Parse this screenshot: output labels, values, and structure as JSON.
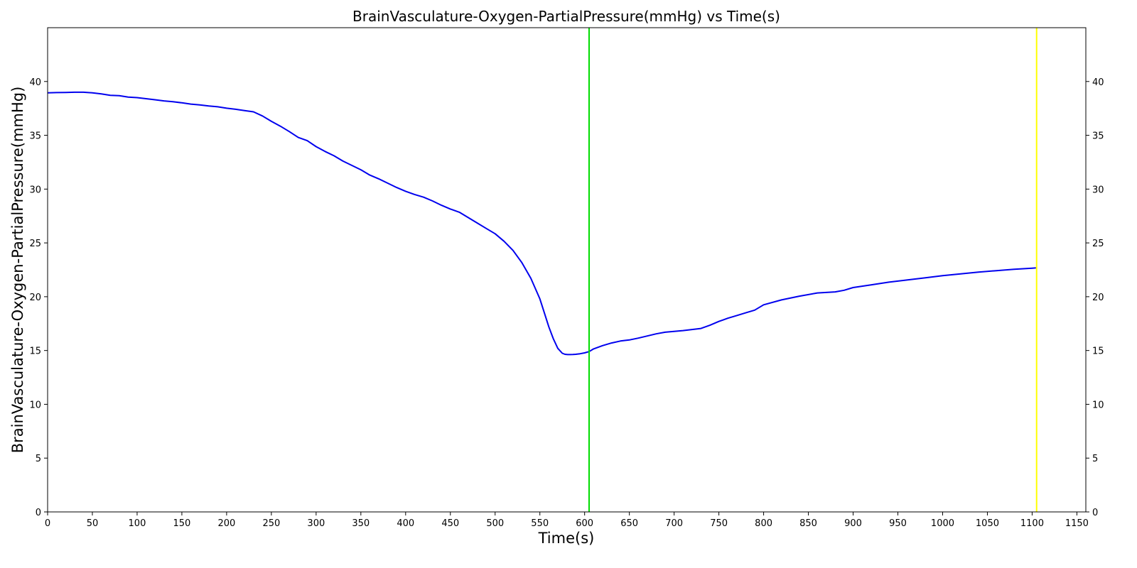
{
  "chart_data": {
    "type": "line",
    "title": "BrainVasculature-Oxygen-PartialPressure(mmHg) vs Time(s)",
    "xlabel": "Time(s)",
    "ylabel": "BrainVasculature-Oxygen-PartialPressure(mmHg)",
    "xlim": [
      0,
      1160
    ],
    "ylim": [
      0,
      45
    ],
    "x_ticks": [
      0,
      50,
      100,
      150,
      200,
      250,
      300,
      350,
      400,
      450,
      500,
      550,
      600,
      650,
      700,
      750,
      800,
      850,
      900,
      950,
      1000,
      1050,
      1100,
      1150
    ],
    "y_ticks": [
      0,
      5,
      10,
      15,
      20,
      25,
      30,
      35,
      40
    ],
    "right_axis_ticks": true,
    "grid": false,
    "legend": "none",
    "series": [
      {
        "color": "#0000ee",
        "x": [
          0,
          10,
          20,
          30,
          40,
          50,
          60,
          70,
          80,
          90,
          100,
          110,
          120,
          130,
          140,
          150,
          160,
          170,
          180,
          190,
          200,
          210,
          220,
          230,
          240,
          250,
          260,
          270,
          280,
          290,
          300,
          310,
          320,
          330,
          340,
          350,
          360,
          370,
          380,
          390,
          400,
          410,
          420,
          430,
          440,
          450,
          460,
          470,
          480,
          490,
          500,
          510,
          520,
          530,
          540,
          550,
          560,
          565,
          570,
          575,
          578,
          581,
          584,
          587,
          590,
          595,
          600,
          605,
          610,
          620,
          630,
          640,
          650,
          660,
          670,
          680,
          690,
          700,
          710,
          720,
          730,
          740,
          750,
          760,
          770,
          780,
          790,
          800,
          820,
          840,
          860,
          880,
          890,
          900,
          920,
          940,
          960,
          980,
          1000,
          1020,
          1040,
          1060,
          1080,
          1100,
          1105
        ],
        "y": [
          38.95,
          38.97,
          38.98,
          39.0,
          39.0,
          38.95,
          38.85,
          38.72,
          38.68,
          38.55,
          38.5,
          38.4,
          38.3,
          38.2,
          38.12,
          38.02,
          37.9,
          37.82,
          37.72,
          37.65,
          37.52,
          37.42,
          37.3,
          37.18,
          36.8,
          36.3,
          35.85,
          35.35,
          34.8,
          34.5,
          33.95,
          33.5,
          33.1,
          32.6,
          32.2,
          31.8,
          31.3,
          30.95,
          30.55,
          30.15,
          29.8,
          29.5,
          29.25,
          28.9,
          28.5,
          28.15,
          27.85,
          27.35,
          26.85,
          26.35,
          25.85,
          25.15,
          24.3,
          23.15,
          21.7,
          19.8,
          17.2,
          16.1,
          15.2,
          14.75,
          14.65,
          14.62,
          14.62,
          14.63,
          14.65,
          14.7,
          14.78,
          14.9,
          15.15,
          15.45,
          15.7,
          15.88,
          15.98,
          16.15,
          16.35,
          16.55,
          16.7,
          16.78,
          16.85,
          16.95,
          17.05,
          17.35,
          17.7,
          18.0,
          18.25,
          18.5,
          18.75,
          19.25,
          19.7,
          20.05,
          20.35,
          20.45,
          20.6,
          20.85,
          21.1,
          21.35,
          21.55,
          21.75,
          21.95,
          22.12,
          22.28,
          22.42,
          22.55,
          22.65,
          22.68
        ]
      }
    ],
    "vertical_lines": [
      {
        "x": 605,
        "color": "#00dd00"
      },
      {
        "x": 1105,
        "color": "#ffff00"
      }
    ]
  }
}
